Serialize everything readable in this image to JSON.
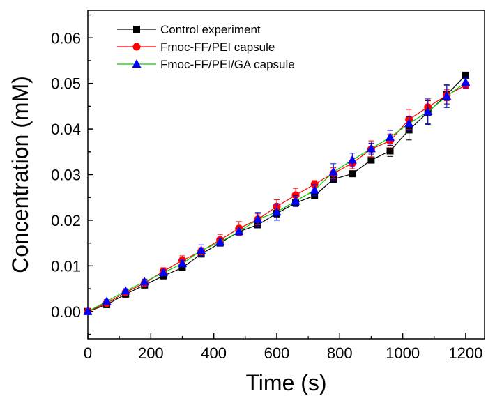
{
  "chart_data": {
    "type": "line",
    "xlabel": "Time (s)",
    "ylabel": "Concentration (mM)",
    "xlim": [
      0,
      1260
    ],
    "ylim": [
      -0.006,
      0.066
    ],
    "xticks": [
      0,
      200,
      400,
      600,
      800,
      1000,
      1200
    ],
    "xtick_labels": [
      "0",
      "200",
      "400",
      "600",
      "800",
      "1000",
      "1200"
    ],
    "yticks": [
      0.0,
      0.01,
      0.02,
      0.03,
      0.04,
      0.05,
      0.06
    ],
    "ytick_labels": [
      "0.00",
      "0.01",
      "0.02",
      "0.03",
      "0.04",
      "0.05",
      "0.06"
    ],
    "legend_position": "top-left",
    "grid": false,
    "x": [
      0,
      60,
      120,
      180,
      240,
      300,
      360,
      420,
      480,
      540,
      600,
      660,
      720,
      780,
      840,
      900,
      960,
      1020,
      1080,
      1140,
      1200
    ],
    "series": [
      {
        "name": "Control experiment",
        "color": "#000000",
        "marker": "square",
        "values": [
          0.0,
          0.0015,
          0.0038,
          0.0058,
          0.0078,
          0.0096,
          0.0126,
          0.015,
          0.0175,
          0.019,
          0.0215,
          0.0238,
          0.0254,
          0.029,
          0.0302,
          0.0332,
          0.0352,
          0.0398,
          0.0437,
          0.0475,
          0.0518
        ],
        "errors": [
          0.0002,
          0.0003,
          0.0003,
          0.0004,
          0.0004,
          0.0004,
          0.0006,
          0.0005,
          0.0005,
          0.0006,
          0.0008,
          0.0006,
          0.0005,
          0.0006,
          0.0005,
          0.0005,
          0.0012,
          0.0022,
          0.0025,
          0.002,
          0.0005
        ]
      },
      {
        "name": "Fmoc-FF/PEI capsule",
        "color": "#ff0000",
        "marker": "circle",
        "values": [
          0.0,
          0.0018,
          0.0042,
          0.0062,
          0.0088,
          0.0112,
          0.0132,
          0.0157,
          0.0182,
          0.0202,
          0.023,
          0.0255,
          0.0279,
          0.0303,
          0.0325,
          0.0356,
          0.0374,
          0.0421,
          0.0448,
          0.0474,
          0.0496
        ],
        "errors": [
          0.0002,
          0.0004,
          0.0004,
          0.0006,
          0.0008,
          0.001,
          0.0008,
          0.0012,
          0.0015,
          0.0012,
          0.0015,
          0.0015,
          0.0008,
          0.0012,
          0.0012,
          0.0018,
          0.0015,
          0.0022,
          0.0015,
          0.0012,
          0.0008
        ]
      },
      {
        "name": "Fmoc-FF/PEI/GA capsule",
        "color": "#00cc00",
        "marker": "triangle",
        "marker_color": "#0000ff",
        "values": [
          0.0,
          0.0022,
          0.0045,
          0.0065,
          0.0085,
          0.0105,
          0.0134,
          0.0152,
          0.0175,
          0.0202,
          0.0218,
          0.0242,
          0.0266,
          0.0306,
          0.0332,
          0.0357,
          0.0382,
          0.0412,
          0.0438,
          0.0472,
          0.0502
        ],
        "errors": [
          0.0002,
          0.0004,
          0.0005,
          0.0006,
          0.0006,
          0.0007,
          0.0012,
          0.0008,
          0.0006,
          0.0015,
          0.0018,
          0.0012,
          0.0012,
          0.0018,
          0.0015,
          0.0012,
          0.0015,
          0.0015,
          0.0028,
          0.0025,
          0.0012
        ]
      }
    ]
  }
}
